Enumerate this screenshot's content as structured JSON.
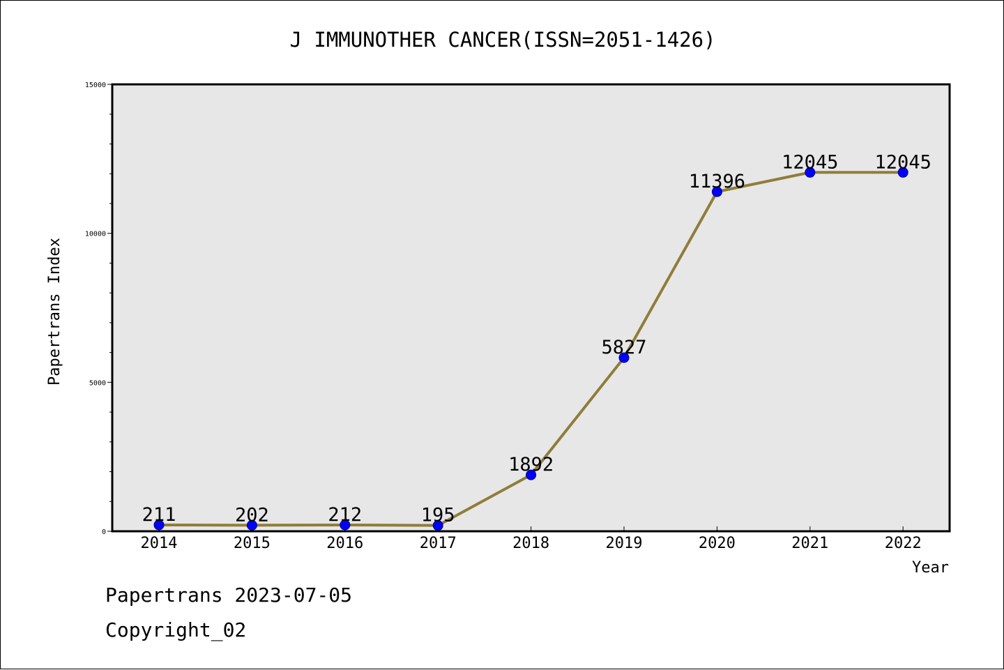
{
  "colors": {
    "plot_background": "#e7e7e7",
    "line": "#8f7d3a",
    "marker_fill": "#0000ff",
    "marker_stroke": "#00007a",
    "axis": "#000000"
  },
  "footer": {
    "line1": "Papertrans 2023-07-05",
    "line2": "Copyright_02"
  },
  "chart_data": {
    "type": "line",
    "title": "J IMMUNOTHER CANCER(ISSN=2051-1426)",
    "xlabel": "Year",
    "ylabel": "Papertrans Index",
    "categories": [
      "2014",
      "2015",
      "2016",
      "2017",
      "2018",
      "2019",
      "2020",
      "2021",
      "2022"
    ],
    "series": [
      {
        "values": [
          211,
          202,
          212,
          195,
          1892,
          5827,
          11396,
          12045,
          12045
        ]
      }
    ],
    "data_labels": [
      "211",
      "202",
      "212",
      "195",
      "1892",
      "5827",
      "11396",
      "12045",
      "12045"
    ],
    "ylim": [
      0,
      15000
    ],
    "yticks": [
      0,
      5000,
      10000,
      15000
    ],
    "ytick_labels": [
      "0",
      "5000",
      "10000",
      "15000"
    ],
    "y_minor_step": 1000,
    "grid": false,
    "legend": "none"
  }
}
